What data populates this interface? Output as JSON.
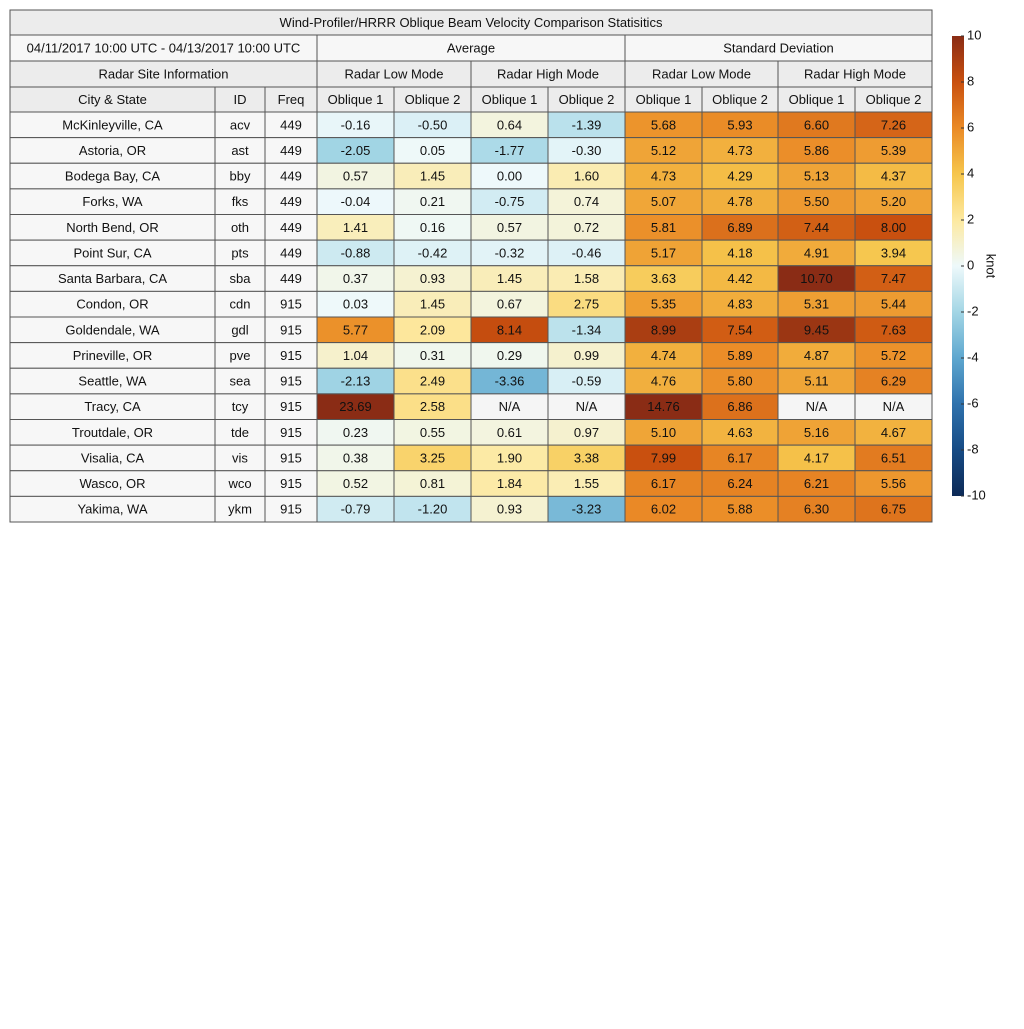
{
  "title": "Wind-Profiler/HRRR Oblique Beam Velocity Comparison Statisitics",
  "header": {
    "date_range": "04/11/2017 10:00 UTC - 04/13/2017 10:00 UTC",
    "average": "Average",
    "std_dev": "Standard Deviation",
    "site_info": "Radar Site Information",
    "modes": [
      "Radar Low Mode",
      "Radar High Mode",
      "Radar Low Mode",
      "Radar High Mode"
    ],
    "columns": [
      "City & State",
      "ID",
      "Freq",
      "Oblique 1",
      "Oblique 2",
      "Oblique 1",
      "Oblique 2",
      "Oblique 1",
      "Oblique 2",
      "Oblique 1",
      "Oblique 2"
    ]
  },
  "rows": [
    [
      "McKinleyville, CA",
      "acv",
      "449",
      "-0.16",
      "-0.50",
      "0.64",
      "-1.39",
      "5.68",
      "5.93",
      "6.60",
      "7.26"
    ],
    [
      "Astoria, OR",
      "ast",
      "449",
      "-2.05",
      "0.05",
      "-1.77",
      "-0.30",
      "5.12",
      "4.73",
      "5.86",
      "5.39"
    ],
    [
      "Bodega Bay, CA",
      "bby",
      "449",
      "0.57",
      "1.45",
      "0.00",
      "1.60",
      "4.73",
      "4.29",
      "5.13",
      "4.37"
    ],
    [
      "Forks, WA",
      "fks",
      "449",
      "-0.04",
      "0.21",
      "-0.75",
      "0.74",
      "5.07",
      "4.78",
      "5.50",
      "5.20"
    ],
    [
      "North Bend, OR",
      "oth",
      "449",
      "1.41",
      "0.16",
      "0.57",
      "0.72",
      "5.81",
      "6.89",
      "7.44",
      "8.00"
    ],
    [
      "Point Sur, CA",
      "pts",
      "449",
      "-0.88",
      "-0.42",
      "-0.32",
      "-0.46",
      "5.17",
      "4.18",
      "4.91",
      "3.94"
    ],
    [
      "Santa Barbara, CA",
      "sba",
      "449",
      "0.37",
      "0.93",
      "1.45",
      "1.58",
      "3.63",
      "4.42",
      "10.70",
      "7.47"
    ],
    [
      "Condon, OR",
      "cdn",
      "915",
      "0.03",
      "1.45",
      "0.67",
      "2.75",
      "5.35",
      "4.83",
      "5.31",
      "5.44"
    ],
    [
      "Goldendale, WA",
      "gdl",
      "915",
      "5.77",
      "2.09",
      "8.14",
      "-1.34",
      "8.99",
      "7.54",
      "9.45",
      "7.63"
    ],
    [
      "Prineville, OR",
      "pve",
      "915",
      "1.04",
      "0.31",
      "0.29",
      "0.99",
      "4.74",
      "5.89",
      "4.87",
      "5.72"
    ],
    [
      "Seattle, WA",
      "sea",
      "915",
      "-2.13",
      "2.49",
      "-3.36",
      "-0.59",
      "4.76",
      "5.80",
      "5.11",
      "6.29"
    ],
    [
      "Tracy, CA",
      "tcy",
      "915",
      "23.69",
      "2.58",
      "N/A",
      "N/A",
      "14.76",
      "6.86",
      "N/A",
      "N/A"
    ],
    [
      "Troutdale, OR",
      "tde",
      "915",
      "0.23",
      "0.55",
      "0.61",
      "0.97",
      "5.10",
      "4.63",
      "5.16",
      "4.67"
    ],
    [
      "Visalia, CA",
      "vis",
      "915",
      "0.38",
      "3.25",
      "1.90",
      "3.38",
      "7.99",
      "6.17",
      "4.17",
      "6.51"
    ],
    [
      "Wasco, OR",
      "wco",
      "915",
      "0.52",
      "0.81",
      "1.84",
      "1.55",
      "6.17",
      "6.24",
      "6.21",
      "5.56"
    ],
    [
      "Yakima, WA",
      "ykm",
      "915",
      "-0.79",
      "-1.20",
      "0.93",
      "-3.23",
      "6.02",
      "5.88",
      "6.30",
      "6.75"
    ]
  ],
  "colorbar": {
    "label": "knot",
    "lim": [
      -10,
      10
    ],
    "ticks": [
      10,
      8,
      6,
      4,
      2,
      0,
      -2,
      -4,
      -6,
      -8,
      -10
    ],
    "colors": [
      "#0d2a57",
      "#164b85",
      "#2f72ad",
      "#5ea7cf",
      "#a3d6e5",
      "#eef9fb",
      "#fde9a0",
      "#f6c64c",
      "#ea8a26",
      "#c9500f",
      "#8a2c15"
    ]
  }
}
